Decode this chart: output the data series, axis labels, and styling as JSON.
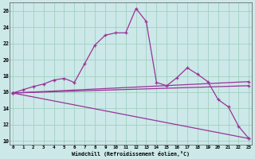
{
  "xlabel": "Windchill (Refroidissement éolien,°C)",
  "background_color": "#cce8e8",
  "grid_color": "#99ccbb",
  "line_color": "#993399",
  "x_ticks": [
    0,
    1,
    2,
    3,
    4,
    5,
    6,
    7,
    8,
    9,
    10,
    11,
    12,
    13,
    14,
    15,
    16,
    17,
    18,
    19,
    20,
    21,
    22,
    23
  ],
  "y_ticks": [
    10,
    12,
    14,
    16,
    18,
    20,
    22,
    24,
    26
  ],
  "xlim": [
    -0.3,
    23.3
  ],
  "ylim": [
    9.5,
    27.0
  ],
  "series": [
    {
      "x": [
        0,
        1,
        2,
        3,
        4,
        5,
        6,
        7,
        8,
        9,
        10,
        11,
        12,
        13,
        14,
        15,
        16,
        17,
        18,
        19,
        20,
        21,
        22,
        23
      ],
      "y": [
        15.9,
        16.3,
        16.7,
        17.0,
        17.5,
        17.7,
        17.2,
        19.5,
        21.8,
        23.0,
        23.3,
        23.3,
        26.3,
        24.7,
        17.2,
        16.8,
        17.8,
        19.0,
        18.2,
        17.3,
        15.1,
        14.2,
        11.8,
        10.3
      ]
    },
    {
      "x": [
        0,
        23
      ],
      "y": [
        15.9,
        16.8
      ]
    },
    {
      "x": [
        0,
        23
      ],
      "y": [
        15.9,
        10.3
      ]
    },
    {
      "x": [
        0,
        23
      ],
      "y": [
        15.9,
        17.3
      ]
    }
  ]
}
